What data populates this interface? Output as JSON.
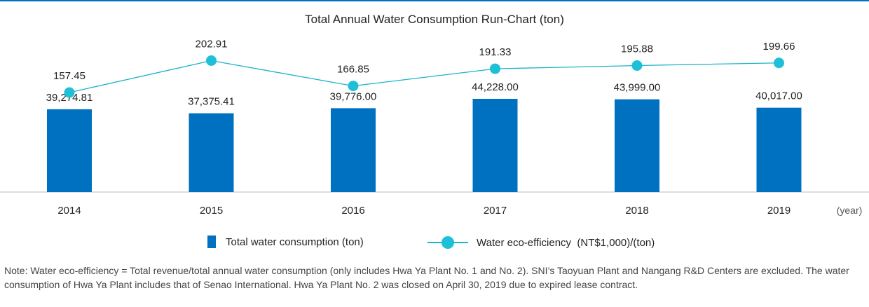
{
  "colors": {
    "bar": "#0070c0",
    "line": "#1ab3c8",
    "marker": "#1ec0d8",
    "axis": "#bbbbbb",
    "top_rule": "#0070c0"
  },
  "chart_data": {
    "type": "bar",
    "title": "Total Annual Water Consumption Run-Chart (ton)",
    "categories": [
      "2014",
      "2015",
      "2016",
      "2017",
      "2018",
      "2019"
    ],
    "x_unit_label": "(year)",
    "series": [
      {
        "name": "Total water consumption (ton)",
        "type": "bar",
        "values": [
          39274.81,
          37375.41,
          39776.0,
          44228.0,
          43999.0,
          40017.0
        ],
        "labels": [
          "39,274.81",
          "37,375.41",
          "39,776.00",
          "44,228.00",
          "43,999.00",
          "40,017.00"
        ]
      },
      {
        "name": "Water eco-efficiency  (NT$1,000)/(ton)",
        "type": "line",
        "values": [
          157.45,
          202.91,
          166.85,
          191.33,
          195.88,
          199.66
        ],
        "labels": [
          "157.45",
          "202.91",
          "166.85",
          "191.33",
          "195.88",
          "199.66"
        ]
      }
    ],
    "grid": false,
    "legend_position": "bottom"
  },
  "note": "Note: Water eco-efficiency = Total revenue/total annual water consumption (only includes Hwa Ya Plant No. 1 and No. 2). SNI’s Taoyuan Plant and Nangang R&D Centers are excluded. The water consumption of Hwa Ya Plant includes that of Senao International. Hwa Ya Plant No. 2 was closed on April 30, 2019 due to expired lease contract."
}
